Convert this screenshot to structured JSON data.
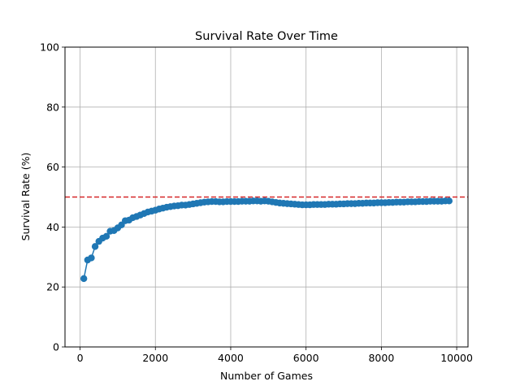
{
  "chart_data": {
    "type": "line",
    "title": "Survival Rate Over Time",
    "xlabel": "Number of Games",
    "ylabel": "Survival Rate (%)",
    "xlim": [
      -400,
      10300
    ],
    "ylim": [
      0,
      100
    ],
    "xticks": [
      0,
      2000,
      4000,
      6000,
      8000,
      10000
    ],
    "yticks": [
      0,
      20,
      40,
      60,
      80,
      100
    ],
    "grid": true,
    "reference_line": {
      "y": 50,
      "color": "#d62728",
      "style": "dashed"
    },
    "series": [
      {
        "color": "#1f77b4",
        "marker": "circle",
        "x": [
          100,
          200,
          300,
          400,
          500,
          600,
          700,
          800,
          900,
          1000,
          1100,
          1200,
          1300,
          1400,
          1500,
          1600,
          1700,
          1800,
          1900,
          2000,
          2100,
          2200,
          2300,
          2400,
          2500,
          2600,
          2700,
          2800,
          2900,
          3000,
          3100,
          3200,
          3300,
          3400,
          3500,
          3600,
          3700,
          3800,
          3900,
          4000,
          4100,
          4200,
          4300,
          4400,
          4500,
          4600,
          4700,
          4800,
          4900,
          5000,
          5100,
          5200,
          5300,
          5400,
          5500,
          5600,
          5700,
          5800,
          5900,
          6000,
          6100,
          6200,
          6300,
          6400,
          6500,
          6600,
          6700,
          6800,
          6900,
          7000,
          7100,
          7200,
          7300,
          7400,
          7500,
          7600,
          7700,
          7800,
          7900,
          8000,
          8100,
          8200,
          8300,
          8400,
          8500,
          8600,
          8700,
          8800,
          8900,
          9000,
          9100,
          9200,
          9300,
          9400,
          9500,
          9600,
          9700,
          9800
        ],
        "y": [
          22.8,
          29.0,
          29.7,
          33.5,
          35.2,
          36.3,
          36.9,
          38.6,
          38.8,
          39.7,
          40.7,
          42.1,
          42.3,
          43.1,
          43.5,
          44.0,
          44.5,
          45.0,
          45.3,
          45.6,
          46.0,
          46.3,
          46.6,
          46.8,
          47.0,
          47.1,
          47.3,
          47.3,
          47.5,
          47.7,
          47.9,
          48.1,
          48.3,
          48.4,
          48.5,
          48.5,
          48.4,
          48.4,
          48.5,
          48.5,
          48.5,
          48.5,
          48.6,
          48.6,
          48.6,
          48.7,
          48.7,
          48.6,
          48.7,
          48.6,
          48.4,
          48.2,
          48.0,
          47.9,
          47.8,
          47.7,
          47.6,
          47.5,
          47.4,
          47.4,
          47.4,
          47.5,
          47.5,
          47.5,
          47.5,
          47.6,
          47.6,
          47.6,
          47.7,
          47.7,
          47.8,
          47.8,
          47.8,
          47.9,
          47.9,
          48.0,
          48.0,
          48.0,
          48.1,
          48.1,
          48.1,
          48.2,
          48.2,
          48.3,
          48.3,
          48.3,
          48.4,
          48.4,
          48.4,
          48.5,
          48.5,
          48.5,
          48.6,
          48.6,
          48.6,
          48.6,
          48.7,
          48.7
        ]
      }
    ]
  }
}
